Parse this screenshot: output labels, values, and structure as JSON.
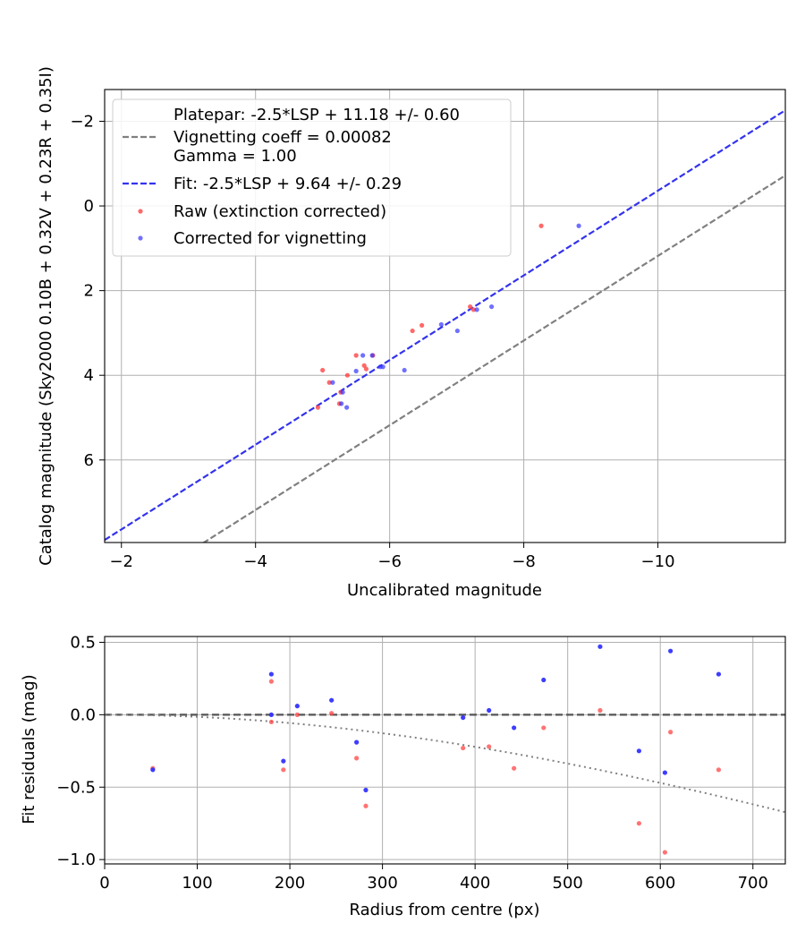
{
  "chart_data": [
    {
      "type": "scatter",
      "xlabel": "Uncalibrated magnitude",
      "ylabel": "Catalog magnitude (Sky2000 0.10B + 0.32V + 0.23R + 0.35I)",
      "xlim": [
        -1.75,
        -11.9
      ],
      "ylim": [
        7.95,
        -2.75
      ],
      "x_inverted": true,
      "y_inverted": true,
      "grid": true,
      "xticks": [
        -2,
        -4,
        -6,
        -8,
        -10
      ],
      "yticks": [
        -2,
        0,
        2,
        4,
        6
      ],
      "legend": {
        "position": "top-left",
        "entries": [
          {
            "label": "Platepar: -2.5*LSP + 11.18 +/- 0.60",
            "style": "none"
          },
          {
            "label": "Vignetting coeff = 0.00082",
            "style": "dashed",
            "color": "#808080"
          },
          {
            "label": "Gamma = 1.00",
            "style": "none"
          },
          {
            "label": "Fit: -2.5*LSP + 9.64 +/- 0.29",
            "style": "dashed",
            "color": "#3333ee"
          },
          {
            "label": "Raw (extinction corrected)",
            "style": "dot",
            "color": "#ff4444"
          },
          {
            "label": "Corrected for vignetting",
            "style": "dot",
            "color": "#3333ff"
          }
        ]
      },
      "lines": [
        {
          "name": "Platepar",
          "slope": 1,
          "intercept": 11.18,
          "color": "#808080"
        },
        {
          "name": "Fit",
          "slope": 1,
          "intercept": 9.64,
          "color": "#3333ee"
        }
      ],
      "series": [
        {
          "name": "Raw (extinction corrected)",
          "color": "#ff4444",
          "points": [
            [
              -8.26,
              0.47
            ],
            [
              -7.2,
              2.38
            ],
            [
              -7.25,
              2.45
            ],
            [
              -6.48,
              2.82
            ],
            [
              -6.34,
              2.95
            ],
            [
              -5.5,
              3.53
            ],
            [
              -5.75,
              3.53
            ],
            [
              -5.62,
              3.77
            ],
            [
              -5.65,
              3.85
            ],
            [
              -5.0,
              3.88
            ],
            [
              -5.37,
              4.0
            ],
            [
              -5.1,
              4.17
            ],
            [
              -5.27,
              4.4
            ],
            [
              -5.25,
              4.67
            ],
            [
              -4.93,
              4.76
            ]
          ]
        },
        {
          "name": "Corrected for vignetting",
          "color": "#3333ff",
          "points": [
            [
              -8.82,
              0.47
            ],
            [
              -7.52,
              2.38
            ],
            [
              -7.3,
              2.45
            ],
            [
              -6.77,
              2.8
            ],
            [
              -7.01,
              2.95
            ],
            [
              -5.6,
              3.53
            ],
            [
              -5.74,
              3.53
            ],
            [
              -5.86,
              3.8
            ],
            [
              -5.9,
              3.8
            ],
            [
              -6.22,
              3.88
            ],
            [
              -5.5,
              3.9
            ],
            [
              -5.15,
              4.17
            ],
            [
              -5.3,
              4.4
            ],
            [
              -5.28,
              4.67
            ],
            [
              -5.36,
              4.76
            ]
          ]
        }
      ]
    },
    {
      "type": "scatter",
      "xlabel": "Radius from centre (px)",
      "ylabel": "Fit residuals (mag)",
      "xlim": [
        0,
        735
      ],
      "ylim": [
        -1.03,
        0.54
      ],
      "grid": true,
      "xticks": [
        0,
        100,
        200,
        300,
        400,
        500,
        600,
        700
      ],
      "yticks": [
        0.5,
        0.0,
        -0.5,
        -1.0
      ],
      "ytick_labels": [
        "0.5",
        "0.0",
        "−0.5",
        "−1.0"
      ],
      "zero_line": {
        "y": 0,
        "style": "dashed",
        "color": "#555555"
      },
      "vignetting_curve": {
        "coeff": 0.00082,
        "style": "dotted",
        "color": "#808080"
      },
      "series": [
        {
          "name": "Raw (extinction corrected)",
          "color": "#ff4444",
          "points": [
            [
              52,
              -0.37
            ],
            [
              180,
              0.23
            ],
            [
              180,
              -0.05
            ],
            [
              193,
              -0.38
            ],
            [
              208,
              0.0
            ],
            [
              245,
              0.01
            ],
            [
              272,
              -0.3
            ],
            [
              282,
              -0.63
            ],
            [
              387,
              -0.23
            ],
            [
              415,
              -0.22
            ],
            [
              442,
              -0.37
            ],
            [
              474,
              -0.09
            ],
            [
              535,
              0.03
            ],
            [
              577,
              -0.75
            ],
            [
              605,
              -0.95
            ],
            [
              611,
              -0.12
            ],
            [
              663,
              -0.38
            ]
          ]
        },
        {
          "name": "Corrected for vignetting",
          "color": "#3333ff",
          "points": [
            [
              52,
              -0.38
            ],
            [
              180,
              0.28
            ],
            [
              180,
              0.0
            ],
            [
              193,
              -0.32
            ],
            [
              208,
              0.06
            ],
            [
              245,
              0.1
            ],
            [
              272,
              -0.19
            ],
            [
              282,
              -0.52
            ],
            [
              387,
              -0.02
            ],
            [
              415,
              0.03
            ],
            [
              442,
              -0.09
            ],
            [
              474,
              0.24
            ],
            [
              535,
              0.47
            ],
            [
              577,
              -0.25
            ],
            [
              605,
              -0.4
            ],
            [
              611,
              0.44
            ],
            [
              663,
              0.28
            ]
          ]
        }
      ]
    }
  ]
}
